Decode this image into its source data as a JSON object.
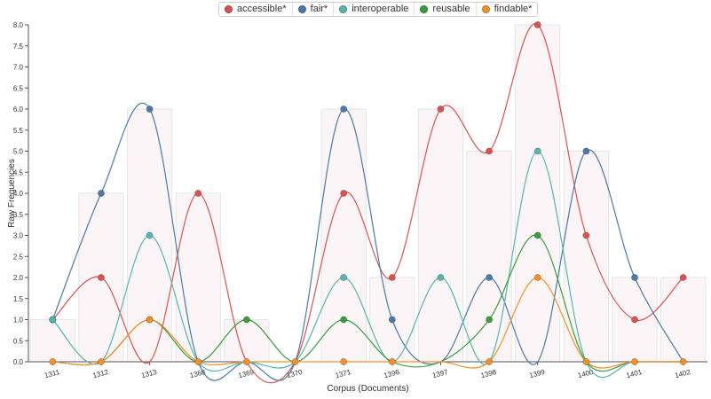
{
  "chart_data": {
    "type": "line",
    "title": "",
    "xlabel": "Corpus (Documents)",
    "ylabel": "Raw Frequencies",
    "categories": [
      "1311",
      "1312",
      "1313",
      "1368",
      "1369",
      "1370",
      "1371",
      "1396",
      "1397",
      "1398",
      "1399",
      "1400",
      "1401",
      "1402"
    ],
    "ylim": [
      0,
      8
    ],
    "yticks": [
      "0.0",
      "0.5",
      "1.0",
      "1.5",
      "2.0",
      "2.5",
      "3.0",
      "3.5",
      "4.0",
      "4.5",
      "5.0",
      "5.5",
      "6.0",
      "6.5",
      "7.0",
      "7.5",
      "8.0"
    ],
    "grid": false,
    "legend_position": "top",
    "background_bars": [
      1,
      4,
      6,
      4,
      1,
      0,
      6,
      2,
      6,
      5,
      8,
      5,
      2,
      2
    ],
    "series": [
      {
        "name": "accessible*",
        "color": "#d9534f",
        "values": [
          1,
          2,
          null,
          4,
          null,
          null,
          4,
          2,
          6,
          5,
          8,
          3,
          1,
          2
        ]
      },
      {
        "name": "fair*",
        "color": "#4e79a7",
        "values": [
          1,
          4,
          6,
          null,
          null,
          null,
          6,
          1,
          null,
          2,
          null,
          5,
          2,
          null
        ]
      },
      {
        "name": "interoperable",
        "color": "#5ab4ac",
        "values": [
          1,
          null,
          3,
          null,
          null,
          null,
          2,
          null,
          2,
          null,
          5,
          null,
          null,
          null
        ]
      },
      {
        "name": "reusable",
        "color": "#3e9a3e",
        "values": [
          null,
          null,
          1,
          null,
          1,
          null,
          1,
          null,
          null,
          1,
          3,
          null,
          null,
          null
        ]
      },
      {
        "name": "findable*",
        "color": "#f0922b",
        "values": [
          0,
          0,
          1,
          0,
          0,
          0,
          0,
          0,
          null,
          0,
          2,
          0,
          0,
          0
        ]
      }
    ]
  }
}
